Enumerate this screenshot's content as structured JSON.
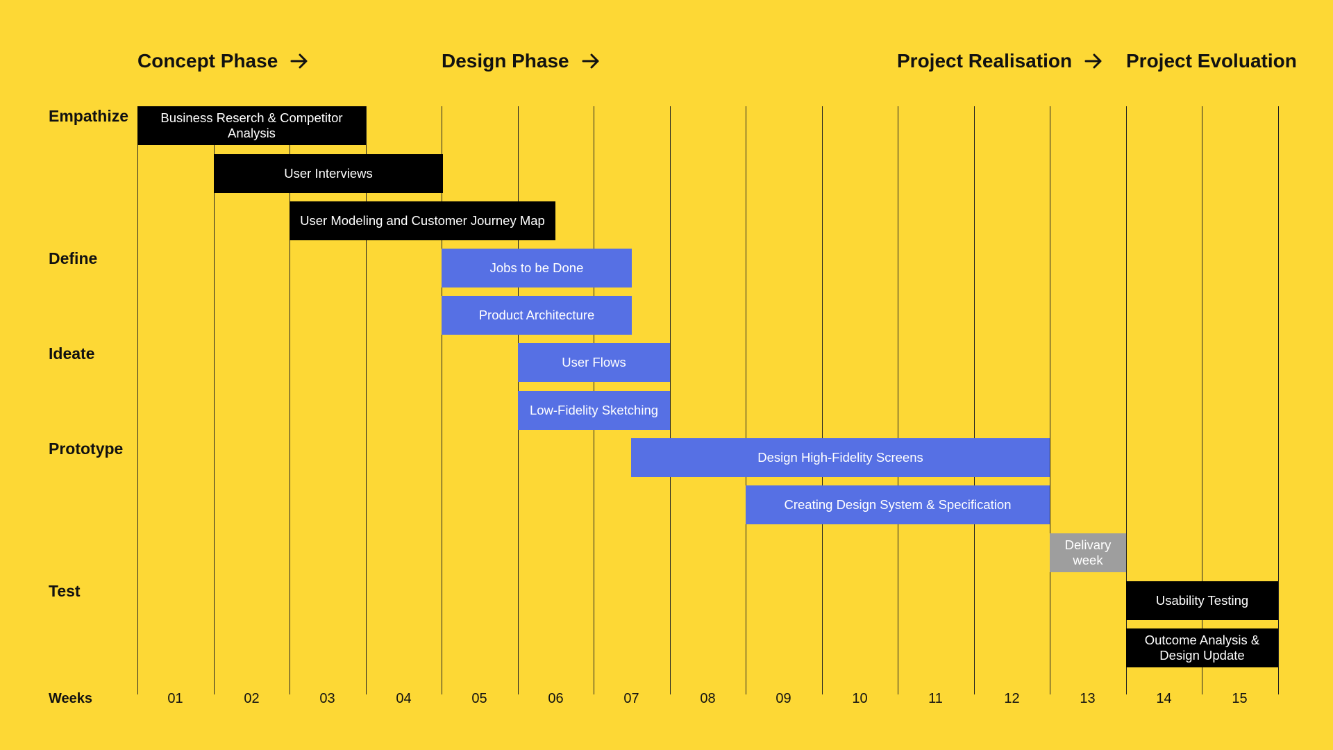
{
  "phases": [
    {
      "label": "Concept Phase",
      "arrow": true
    },
    {
      "label": "Design Phase",
      "arrow": true
    },
    {
      "label": "Project Realisation",
      "arrow": true
    },
    {
      "label": "Project Evoluation",
      "arrow": false
    }
  ],
  "stages": [
    "Empathize",
    "Define",
    "Ideate",
    "Prototype",
    "Test"
  ],
  "weeks_label": "Weeks",
  "weeks": [
    "01",
    "02",
    "03",
    "04",
    "05",
    "06",
    "07",
    "08",
    "09",
    "10",
    "11",
    "12",
    "13",
    "14",
    "15"
  ],
  "tasks": [
    {
      "label": "Business Reserch & Competitor Analysis",
      "color": "#000000",
      "kind": "black",
      "start_week": 1,
      "end_week": 3
    },
    {
      "label": "User Interviews",
      "color": "#000000",
      "kind": "black",
      "start_week": 2,
      "end_week": 4
    },
    {
      "label": "User Modeling and Customer Journey Map",
      "color": "#000000",
      "kind": "black",
      "start_week": 3,
      "end_week": 5
    },
    {
      "label": "Jobs to be Done",
      "color": "#5670E4",
      "kind": "blue",
      "start_week": 5,
      "end_week": 7
    },
    {
      "label": "Product Architecture",
      "color": "#5670E4",
      "kind": "blue",
      "start_week": 5,
      "end_week": 7
    },
    {
      "label": "User Flows",
      "color": "#5670E4",
      "kind": "blue",
      "start_week": 6,
      "end_week": 7
    },
    {
      "label": "Low-Fidelity Sketching",
      "color": "#5670E4",
      "kind": "blue",
      "start_week": 6,
      "end_week": 7
    },
    {
      "label": "Design High-Fidelity Screens",
      "color": "#5670E4",
      "kind": "blue",
      "start_week": 7,
      "end_week": 12
    },
    {
      "label": "Creating Design System & Specification",
      "color": "#5670E4",
      "kind": "blue",
      "start_week": 9,
      "end_week": 12
    },
    {
      "label": "Delivary week",
      "color": "#9E9E9E",
      "kind": "grey",
      "start_week": 13,
      "end_week": 13
    },
    {
      "label": "Usability Testing",
      "color": "#000000",
      "kind": "black",
      "start_week": 14,
      "end_week": 15
    },
    {
      "label": "Outcome Analysis & Design Update",
      "color": "#000000",
      "kind": "black",
      "start_week": 14,
      "end_week": 15
    }
  ],
  "colors": {
    "background": "#FDD835",
    "black_task": "#000000",
    "blue_task": "#5670E4",
    "grey_task": "#9E9E9E",
    "gridline": "#222222"
  }
}
